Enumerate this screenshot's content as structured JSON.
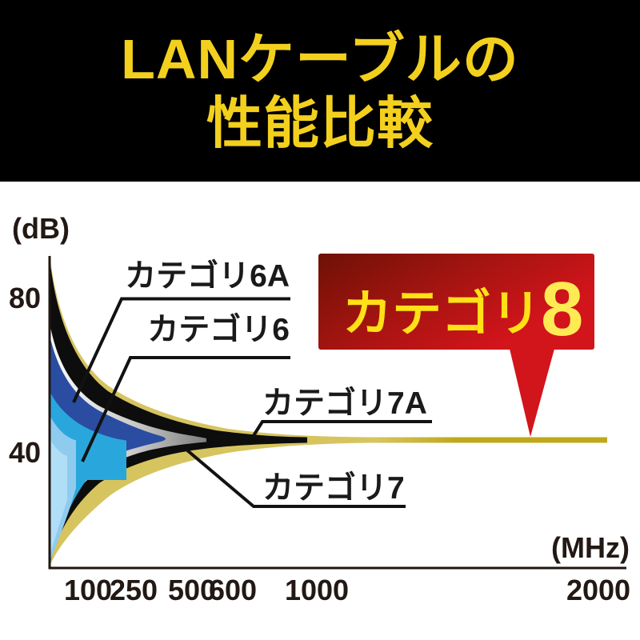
{
  "header": {
    "lines": [
      "LANケーブルの",
      "性能比較"
    ]
  },
  "chart": {
    "y_axis_label": "(dB)",
    "x_axis_label": "(MHz)",
    "y_ticks": [
      "80",
      "40"
    ],
    "x_ticks": [
      "100",
      "250",
      "500",
      "600",
      "1000",
      "2000"
    ],
    "labels": {
      "cat6a": "カテゴリ6A",
      "cat6": "カテゴリ6",
      "cat7a": "カテゴリ7A",
      "cat7": "カテゴリ7",
      "cat8": "カテゴリ8"
    }
  },
  "colors": {
    "title_yellow": "#F3D01D",
    "header_bg": "#000000",
    "ink": "#221814",
    "gold": "#D6C45F",
    "gold_line": "#BFA81C",
    "black_band": "#0D0D0D",
    "gray_light": "#FBFBFB",
    "gray_dark": "#7E7E7E",
    "dark_blue": "#2A4DA1",
    "cyan": "#29A7DC",
    "pale_blue": "#8FCBEE",
    "paler_blue": "#B0DEF6",
    "banner_dark": "#6E1107",
    "banner_mid": "#A21410",
    "banner_bright": "#D2141B",
    "banner_text_yellow": "#FFE115",
    "banner_eight_yellow": "#FFEA54",
    "arrow_red": "#D2141B"
  },
  "chart_data": {
    "type": "area",
    "title": "LANケーブルの性能比較",
    "xlabel": "(MHz)",
    "ylabel": "(dB)",
    "x_ticks": [
      100,
      250,
      500,
      600,
      1000,
      2000
    ],
    "y_ticks": [
      80,
      40
    ],
    "legend_position": "inline-callouts",
    "grid": false,
    "note": "Nested funnel-shaped bands: each cable category band starts wide at low frequency and converges to a horizontal line at about 44 dB; each band extends to its maximum bandwidth on the MHz axis.",
    "series": [
      {
        "name": "カテゴリ8",
        "max_frequency_mhz": 2000,
        "color": "#D6C45F"
      },
      {
        "name": "カテゴリ7A",
        "max_frequency_mhz": 1000,
        "color": "#0D0D0D"
      },
      {
        "name": "カテゴリ7",
        "max_frequency_mhz": 600,
        "color": "#9A9A9A"
      },
      {
        "name": "カテゴリ6A",
        "max_frequency_mhz": 500,
        "color": "#2A4DA1"
      },
      {
        "name": "カテゴリ6",
        "max_frequency_mhz": 250,
        "color": "#29A7DC"
      },
      {
        "name": "unlabeled-band",
        "max_frequency_mhz": 100,
        "color": "#8FCBEE"
      }
    ]
  }
}
